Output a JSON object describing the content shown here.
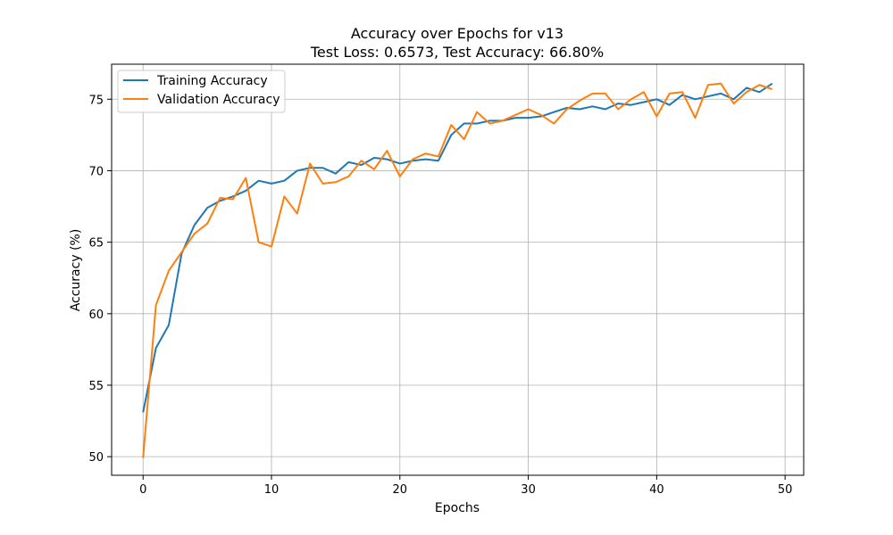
{
  "chart_data": {
    "type": "line",
    "title_line1": "Accuracy over Epochs for v13",
    "title_line2": "Test Loss: 0.6573, Test Accuracy: 66.80%",
    "xlabel": "Epochs",
    "ylabel": "Accuracy (%)",
    "xlim": [
      -2.45,
      51.45
    ],
    "ylim": [
      48.7,
      77.45
    ],
    "x_ticks": [
      0,
      10,
      20,
      30,
      40,
      50
    ],
    "y_ticks": [
      50,
      55,
      60,
      65,
      70,
      75
    ],
    "grid": true,
    "legend_position": "top-left",
    "x": [
      0,
      1,
      2,
      3,
      4,
      5,
      6,
      7,
      8,
      9,
      10,
      11,
      12,
      13,
      14,
      15,
      16,
      17,
      18,
      19,
      20,
      21,
      22,
      23,
      24,
      25,
      26,
      27,
      28,
      29,
      30,
      31,
      32,
      33,
      34,
      35,
      36,
      37,
      38,
      39,
      40,
      41,
      42,
      43,
      44,
      45,
      46,
      47,
      48,
      49
    ],
    "series": [
      {
        "name": "Training Accuracy",
        "color": "#1f77b4",
        "values": [
          53.1,
          57.6,
          59.2,
          64.2,
          66.2,
          67.4,
          67.9,
          68.2,
          68.6,
          69.3,
          69.1,
          69.3,
          70.0,
          70.2,
          70.2,
          69.8,
          70.6,
          70.4,
          70.9,
          70.8,
          70.5,
          70.7,
          70.8,
          70.7,
          72.5,
          73.3,
          73.3,
          73.5,
          73.5,
          73.7,
          73.7,
          73.8,
          74.1,
          74.4,
          74.3,
          74.5,
          74.3,
          74.7,
          74.6,
          74.8,
          75.0,
          74.6,
          75.3,
          75.0,
          75.2,
          75.4,
          75.0,
          75.8,
          75.5,
          76.1
        ]
      },
      {
        "name": "Validation Accuracy",
        "color": "#ff7f0e",
        "values": [
          49.9,
          60.6,
          63.0,
          64.3,
          65.6,
          66.3,
          68.1,
          68.0,
          69.5,
          65.0,
          64.7,
          68.2,
          67.0,
          70.5,
          69.1,
          69.2,
          69.6,
          70.7,
          70.1,
          71.4,
          69.6,
          70.8,
          71.2,
          71.0,
          73.2,
          72.2,
          74.1,
          73.3,
          73.5,
          73.9,
          74.3,
          73.9,
          73.3,
          74.3,
          74.9,
          75.4,
          75.4,
          74.3,
          75.0,
          75.5,
          73.8,
          75.4,
          75.5,
          73.7,
          76.0,
          76.1,
          74.7,
          75.5,
          76.0,
          75.7
        ]
      }
    ]
  }
}
